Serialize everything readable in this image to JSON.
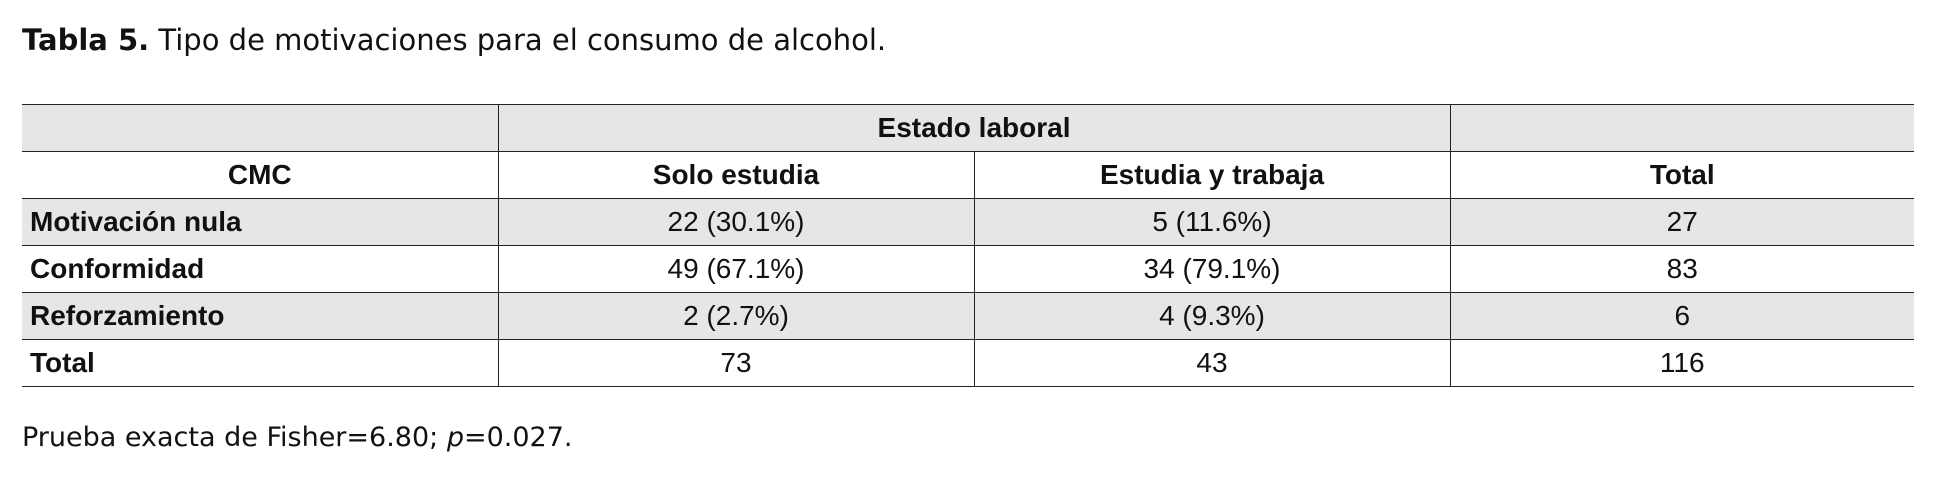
{
  "caption": {
    "label": "Tabla 5.",
    "text": "Tipo de motivaciones para el consumo de alcohol."
  },
  "table": {
    "group_header": "Estado laboral",
    "headers": [
      "CMC",
      "Solo estudia",
      "Estudia y trabaja",
      "Total"
    ],
    "rows": [
      {
        "label": "Motivación nula",
        "cells": [
          "22 (30.1%)",
          "5 (11.6%)",
          "27"
        ]
      },
      {
        "label": "Conformidad",
        "cells": [
          "49 (67.1%)",
          "34 (79.1%)",
          "83"
        ]
      },
      {
        "label": "Reforzamiento",
        "cells": [
          "2 (2.7%)",
          "4 (9.3%)",
          "6"
        ]
      },
      {
        "label": "Total",
        "cells": [
          "73",
          "43",
          "116"
        ]
      }
    ]
  },
  "footnote": {
    "prefix": "Prueba exacta de Fisher=6.80; ",
    "p_symbol": "p",
    "suffix": "=0.027."
  }
}
